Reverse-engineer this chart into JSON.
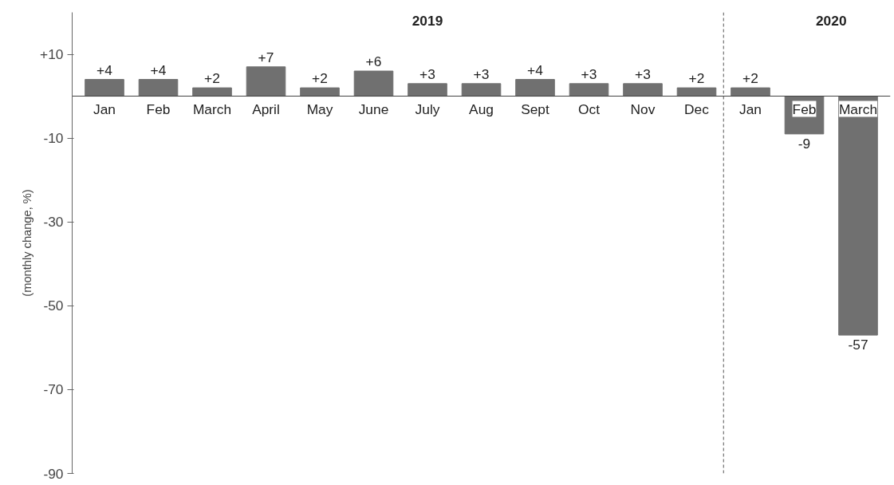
{
  "chart_data": {
    "type": "bar",
    "ylabel": "(monthly change, %)",
    "categories": [
      "Jan",
      "Feb",
      "March",
      "April",
      "May",
      "June",
      "July",
      "Aug",
      "Sept",
      "Oct",
      "Nov",
      "Dec",
      "Jan",
      "Feb",
      "March"
    ],
    "values": [
      4,
      4,
      2,
      7,
      2,
      6,
      3,
      3,
      4,
      3,
      3,
      2,
      2,
      -9,
      -57
    ],
    "value_labels": [
      "+4",
      "+4",
      "+2",
      "+7",
      "+2",
      "+6",
      "+3",
      "+3",
      "+4",
      "+3",
      "+3",
      "+2",
      "+2",
      "-9",
      "-57"
    ],
    "color": "#707070",
    "ylim": [
      -90,
      20
    ],
    "yticks": [
      {
        "value": 10,
        "label": "+10"
      },
      -10,
      -30,
      -50,
      -70,
      -90
    ],
    "grid": false,
    "annotations": [
      "2019",
      "2020"
    ]
  }
}
